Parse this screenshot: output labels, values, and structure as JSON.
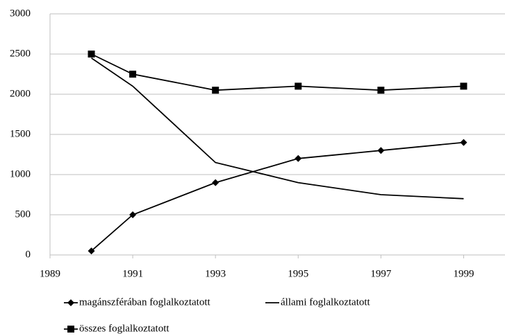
{
  "chart_data": {
    "type": "line",
    "x": [
      1990,
      1991,
      1993,
      1995,
      1997,
      1999
    ],
    "series": [
      {
        "name": "magánszférában foglalkoztatott",
        "color": "#000000",
        "marker": "diamond",
        "values": [
          50,
          500,
          900,
          1200,
          1300,
          1400
        ]
      },
      {
        "name": "állami foglalkoztatott",
        "color": "#000000",
        "marker": "none",
        "values": [
          2450,
          2100,
          1150,
          900,
          750,
          700
        ]
      },
      {
        "name": "összes foglalkoztatott",
        "color": "#000000",
        "marker": "square",
        "values": [
          2500,
          2250,
          2050,
          2100,
          2050,
          2100
        ]
      }
    ],
    "xlim": [
      1989,
      2000
    ],
    "xticks": [
      1989,
      1991,
      1993,
      1995,
      1997,
      1999
    ],
    "ylim": [
      0,
      3000
    ],
    "yticks": [
      0,
      500,
      1000,
      1500,
      2000,
      2500,
      3000
    ],
    "grid": true,
    "legend": "bottom"
  }
}
